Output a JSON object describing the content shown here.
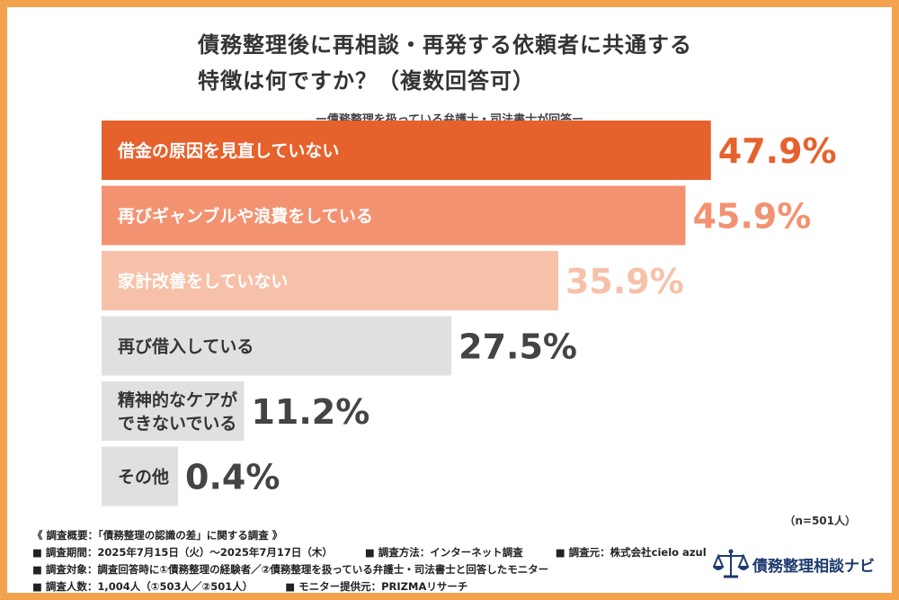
{
  "title_line1": "債務整理後に再相談・再発する依頼者に共通する",
  "title_line2": "特徴は何ですか？（複数回答可）",
  "subtitle": "ー債務整理を扱っている弁護士・司法書士が回答ー",
  "chart_data": {
    "type": "bar",
    "orientation": "horizontal",
    "title": "債務整理後に再相談・再発する依頼者に共通する特徴は何ですか？（複数回答可）",
    "categories": [
      "借金の原因を見直していない",
      "再びギャンブルや浪費をしている",
      "家計改善をしていない",
      "再び借入している",
      "精神的なケアができないでいる",
      "その他"
    ],
    "category_lines": [
      [
        "借金の原因を見直していない"
      ],
      [
        "再びギャンブルや浪費をしている"
      ],
      [
        "家計改善をしていない"
      ],
      [
        "再び借入している"
      ],
      [
        "精神的なケアが",
        "できないでいる"
      ],
      [
        "その他"
      ]
    ],
    "values": [
      47.9,
      45.9,
      35.9,
      27.5,
      11.2,
      0.4
    ],
    "value_labels": [
      "47.9%",
      "45.9%",
      "35.9%",
      "27.5%",
      "11.2%",
      "0.4%"
    ],
    "unit": "%",
    "xlim": [
      0,
      50
    ],
    "bar_colors": [
      "#e5622d",
      "#f39271",
      "#f7c1a9",
      "#e0e0e0",
      "#e0e0e0",
      "#e0e0e0"
    ],
    "label_colors": [
      "#ffffff",
      "#ffffff",
      "#ffffff",
      "#333333",
      "#333333",
      "#333333"
    ],
    "value_colors": [
      "#e5622d",
      "#f39271",
      "#f7c1a9",
      "#444444",
      "#444444",
      "#444444"
    ]
  },
  "n_label": "（n=501人）",
  "footer": {
    "overview": "《 調査概要：「債務整理の認識の差」に関する調査 》",
    "period": "■ 調査期間：2025年7月15日（火）〜2025年7月17日（木）",
    "method": "■ 調査方法：インターネット調査",
    "source": "■ 調査元：株式会社cielo azul",
    "target": "■ 調査対象：調査回答時に①債務整理の経験者／②債務整理を扱っている弁護士・司法書士と回答したモニター",
    "count": "■ 調査人数：1,004人（①503人／②501人）",
    "provider": "■ モニター提供元：PRIZMAリサーチ"
  },
  "logo": {
    "text": "債務整理相談ナビ",
    "icon": "scales-of-justice-icon",
    "color": "#1f3b6e"
  },
  "colors": {
    "frame": "#f3a24d",
    "accent": "#e5622d"
  }
}
